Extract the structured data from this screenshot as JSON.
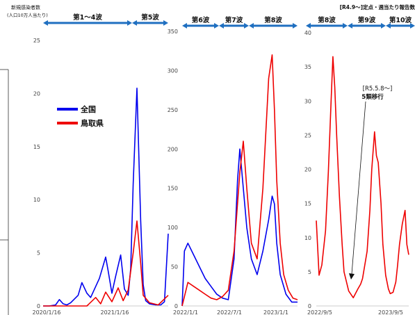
{
  "page_title": "新規感染者数",
  "ylabel": "(人口10万人当たり)",
  "right_note": "[R4.9～]定点・週当たり報告数",
  "colors": {
    "national": "#0000ee",
    "tottori": "#ee0000",
    "wave_arrow": "#1f6fc0",
    "border": "#333333"
  },
  "chart_data": [
    {
      "type": "line",
      "title": "",
      "ylabel": "新規感染者数(人口10万人当たり)",
      "ylim": [
        0,
        25
      ],
      "yticks": [
        "0",
        "5",
        "10",
        "15",
        "20",
        "25"
      ],
      "xticks": [
        "2020/1/16",
        "2021/1/16"
      ],
      "legend": [
        {
          "name": "全国",
          "color": "#0000ee"
        },
        {
          "name": "鳥取県",
          "color": "#ee0000"
        }
      ],
      "waves": [
        "第1～4波",
        "第5波"
      ],
      "series": [
        {
          "name": "全国",
          "color": "#0000ee",
          "x": [
            0,
            0.05,
            0.1,
            0.13,
            0.16,
            0.19,
            0.22,
            0.28,
            0.31,
            0.35,
            0.38,
            0.45,
            0.5,
            0.52,
            0.55,
            0.58,
            0.62,
            0.65,
            0.68,
            0.7,
            0.72,
            0.75,
            0.78,
            0.8,
            0.82,
            0.85,
            0.9,
            0.94,
            0.97,
            1.0
          ],
          "y": [
            0,
            0,
            0.1,
            0.6,
            0.2,
            0.1,
            0.3,
            1.0,
            2.2,
            1.2,
            0.8,
            2.6,
            4.6,
            3.3,
            1.2,
            2.8,
            4.8,
            1.6,
            1.0,
            3.5,
            11.5,
            20.5,
            8.0,
            2.0,
            0.5,
            0.2,
            0.1,
            0.1,
            0.4,
            6.8
          ]
        },
        {
          "name": "鳥取県",
          "color": "#ee0000",
          "x": [
            0,
            0.1,
            0.2,
            0.28,
            0.35,
            0.42,
            0.46,
            0.5,
            0.55,
            0.6,
            0.64,
            0.68,
            0.72,
            0.75,
            0.78,
            0.8,
            0.85,
            0.92,
            1.0
          ],
          "y": [
            0,
            0,
            0,
            0,
            0,
            0.8,
            0.2,
            1.3,
            0.4,
            1.7,
            0.5,
            1.5,
            5.0,
            8.0,
            4.0,
            1.0,
            0.3,
            0.1,
            1.0
          ]
        }
      ]
    },
    {
      "type": "line",
      "title": "",
      "ylim": [
        0,
        350
      ],
      "yticks": [
        "0",
        "50",
        "100",
        "150",
        "200",
        "250",
        "300",
        "350"
      ],
      "xticks": [
        "2022/1/1",
        "2022/7/1",
        "2023/1/1"
      ],
      "waves": [
        "第6波",
        "第7波",
        "第8波"
      ],
      "series": [
        {
          "name": "全国",
          "color": "#0000ee",
          "x": [
            0,
            0.02,
            0.05,
            0.1,
            0.15,
            0.2,
            0.25,
            0.3,
            0.35,
            0.4,
            0.45,
            0.48,
            0.5,
            0.53,
            0.56,
            0.6,
            0.65,
            0.7,
            0.75,
            0.78,
            0.8,
            0.82,
            0.85,
            0.9,
            0.95,
            1.0
          ],
          "y": [
            0,
            70,
            80,
            65,
            50,
            35,
            25,
            15,
            10,
            8,
            60,
            160,
            200,
            150,
            100,
            60,
            40,
            70,
            110,
            140,
            130,
            80,
            40,
            15,
            5,
            5
          ]
        },
        {
          "name": "鳥取県",
          "color": "#ee0000",
          "x": [
            0,
            0.05,
            0.1,
            0.15,
            0.2,
            0.25,
            0.3,
            0.35,
            0.4,
            0.45,
            0.5,
            0.53,
            0.56,
            0.6,
            0.65,
            0.7,
            0.75,
            0.78,
            0.8,
            0.82,
            0.85,
            0.88,
            0.92,
            0.96,
            1.0
          ],
          "y": [
            0,
            30,
            25,
            20,
            15,
            10,
            8,
            12,
            20,
            70,
            170,
            210,
            150,
            80,
            60,
            150,
            290,
            320,
            250,
            160,
            80,
            40,
            20,
            10,
            8
          ]
        }
      ]
    },
    {
      "type": "line",
      "title": "",
      "ylim": [
        0,
        40
      ],
      "yticks": [
        "0",
        "5",
        "10",
        "15",
        "20",
        "25",
        "30",
        "35",
        "40"
      ],
      "xticks": [
        "2022/9/5",
        "2023/9/5"
      ],
      "waves": [
        "第8波",
        "第9波",
        "第10波"
      ],
      "annotation": {
        "label_line1": "[R5.5.8～]",
        "label_line2": "5類移行"
      },
      "series": [
        {
          "name": "鳥取県",
          "color": "#ee0000",
          "x": [
            0,
            0.03,
            0.06,
            0.1,
            0.13,
            0.16,
            0.18,
            0.2,
            0.22,
            0.25,
            0.28,
            0.3,
            0.35,
            0.4,
            0.45,
            0.48,
            0.5,
            0.55,
            0.58,
            0.6,
            0.63,
            0.65,
            0.67,
            0.7,
            0.72,
            0.75,
            0.78,
            0.8,
            0.83,
            0.86,
            0.88,
            0.9,
            0.93,
            0.96,
            0.98,
            1.0
          ],
          "y": [
            12.5,
            4.5,
            6.0,
            11.0,
            19.5,
            30.0,
            36.5,
            32.0,
            25.0,
            16.0,
            9.0,
            5.0,
            2.2,
            1.2,
            2.5,
            3.2,
            4.0,
            8.0,
            14.0,
            20.0,
            25.5,
            22.0,
            21.0,
            15.0,
            9.0,
            4.5,
            2.5,
            1.8,
            2.0,
            3.5,
            6.0,
            9.0,
            12.0,
            14.0,
            9.0,
            7.5
          ]
        }
      ]
    }
  ]
}
